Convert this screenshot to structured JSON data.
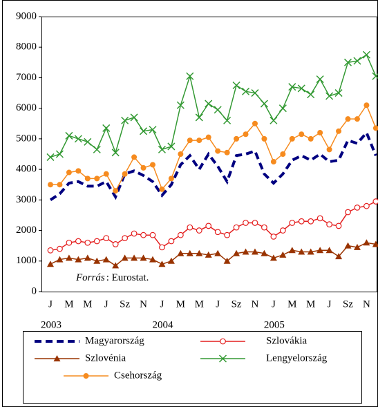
{
  "chart_data": {
    "type": "line",
    "categories": [
      "J",
      null,
      "M",
      null,
      "M",
      null,
      "J",
      null,
      "Sz",
      null,
      "N",
      null,
      "J",
      null,
      "M",
      null,
      "M",
      null,
      "J",
      null,
      "Sz",
      null,
      "N",
      null,
      "J",
      null,
      "M",
      null,
      "M",
      null,
      "J",
      null,
      "Sz",
      null,
      "N",
      null
    ],
    "years": [
      "2003",
      "2004",
      "2005"
    ],
    "source_label": "Forrás",
    "source": ": Eurostat.",
    "ylim": [
      0,
      9000
    ],
    "yticks": [
      0,
      1000,
      2000,
      3000,
      4000,
      5000,
      6000,
      7000,
      8000,
      9000
    ],
    "series": [
      {
        "name": "Magyarország",
        "color": "#000080",
        "marker": "none",
        "dashed": true,
        "values": [
          3000,
          3200,
          3550,
          3600,
          3450,
          3450,
          3600,
          3100,
          3850,
          3950,
          3800,
          3600,
          3150,
          3500,
          4150,
          4450,
          4000,
          4500,
          4100,
          3600,
          4450,
          4500,
          4600,
          3850,
          3550,
          3850,
          4300,
          4450,
          4300,
          4500,
          4250,
          4300,
          4950,
          4850,
          5200,
          4450
        ]
      },
      {
        "name": "Szlovákia",
        "color": "#e41f1f",
        "marker": "open-circle",
        "values": [
          1350,
          1400,
          1600,
          1650,
          1600,
          1650,
          1750,
          1550,
          1750,
          1900,
          1850,
          1850,
          1450,
          1650,
          1850,
          2100,
          2000,
          2150,
          1950,
          1850,
          2100,
          2250,
          2250,
          2100,
          1800,
          2000,
          2250,
          2300,
          2300,
          2400,
          2200,
          2150,
          2600,
          2750,
          2800,
          2950
        ]
      },
      {
        "name": "Szlovénia",
        "color": "#993300",
        "marker": "triangle",
        "values": [
          900,
          1050,
          1100,
          1050,
          1100,
          1000,
          1050,
          850,
          1100,
          1100,
          1100,
          1050,
          900,
          1000,
          1250,
          1250,
          1250,
          1200,
          1250,
          1000,
          1250,
          1300,
          1300,
          1250,
          1100,
          1200,
          1350,
          1300,
          1300,
          1350,
          1350,
          1150,
          1500,
          1450,
          1600,
          1550
        ]
      },
      {
        "name": "Lengyelország",
        "color": "#339933",
        "marker": "x",
        "values": [
          4400,
          4500,
          5100,
          5000,
          4900,
          4650,
          5350,
          4550,
          5600,
          5700,
          5250,
          5300,
          4650,
          4750,
          6100,
          7050,
          5700,
          6150,
          5950,
          5600,
          6750,
          6550,
          6500,
          6150,
          5600,
          6000,
          6700,
          6650,
          6450,
          6950,
          6400,
          6500,
          7500,
          7550,
          7750,
          7050
        ]
      },
      {
        "name": "Csehország",
        "color": "#f68b1f",
        "marker": "circle",
        "values": [
          3500,
          3500,
          3900,
          3950,
          3700,
          3700,
          3850,
          3300,
          3850,
          4400,
          4050,
          4150,
          3350,
          3700,
          4500,
          4950,
          4950,
          5050,
          4600,
          4550,
          5000,
          5150,
          5500,
          5000,
          4250,
          4500,
          5000,
          5150,
          5000,
          5200,
          4650,
          5250,
          5650,
          5650,
          6100,
          5350
        ]
      }
    ]
  }
}
